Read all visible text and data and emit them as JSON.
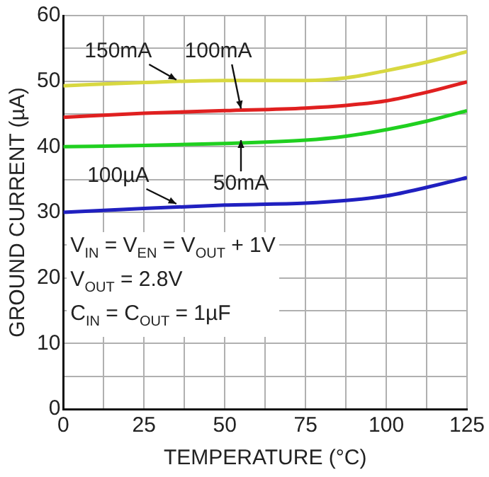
{
  "chart_data": {
    "type": "line",
    "xlabel": "TEMPERATURE (°C)",
    "ylabel": "GROUND CURRENT (µA)",
    "x": [
      0,
      25,
      50,
      75,
      87.5,
      100,
      112.5,
      125
    ],
    "series": [
      {
        "name": "150mA",
        "color": "#d8d840",
        "values": [
          49.3,
          49.8,
          50.1,
          50.1,
          50.5,
          51.6,
          52.9,
          54.5
        ]
      },
      {
        "name": "100mA",
        "color": "#e02020",
        "values": [
          44.5,
          45.1,
          45.5,
          45.9,
          46.3,
          47,
          48.3,
          49.9
        ]
      },
      {
        "name": "50mA",
        "color": "#20d020",
        "values": [
          40,
          40.2,
          40.5,
          41,
          41.6,
          42.6,
          43.9,
          45.5
        ]
      },
      {
        "name": "100µA",
        "color": "#2020c0",
        "values": [
          30,
          30.6,
          31.1,
          31.4,
          31.8,
          32.5,
          33.8,
          35.3
        ]
      }
    ],
    "xlim": [
      0,
      125
    ],
    "ylim": [
      0,
      60
    ],
    "xticks": [
      0,
      {
        "value": 12.5,
        "label": null
      },
      25,
      {
        "value": 37.5,
        "label": null
      },
      50,
      {
        "value": 62.5,
        "label": null
      },
      75,
      {
        "value": 87.5,
        "label": null
      },
      100,
      {
        "value": 112.5,
        "label": null
      },
      125
    ],
    "yticks": [
      0,
      {
        "value": 5,
        "label": null
      },
      10,
      {
        "value": 15,
        "label": null
      },
      20,
      {
        "value": 25,
        "label": null
      },
      30,
      {
        "value": 35,
        "label": null
      },
      40,
      {
        "value": 45,
        "label": null
      },
      50,
      {
        "value": 55,
        "label": null
      },
      60
    ],
    "annotations": [
      "V$_{IN}$ = V$_{EN}$ = V$_{OUT}$ + 1V",
      "V$_{OUT}$ = 2.8V",
      "C$_{IN}$ = C$_{OUT}$ = 1µF"
    ],
    "grid": true,
    "legend": false,
    "marker": "none",
    "line_style": "solid"
  }
}
